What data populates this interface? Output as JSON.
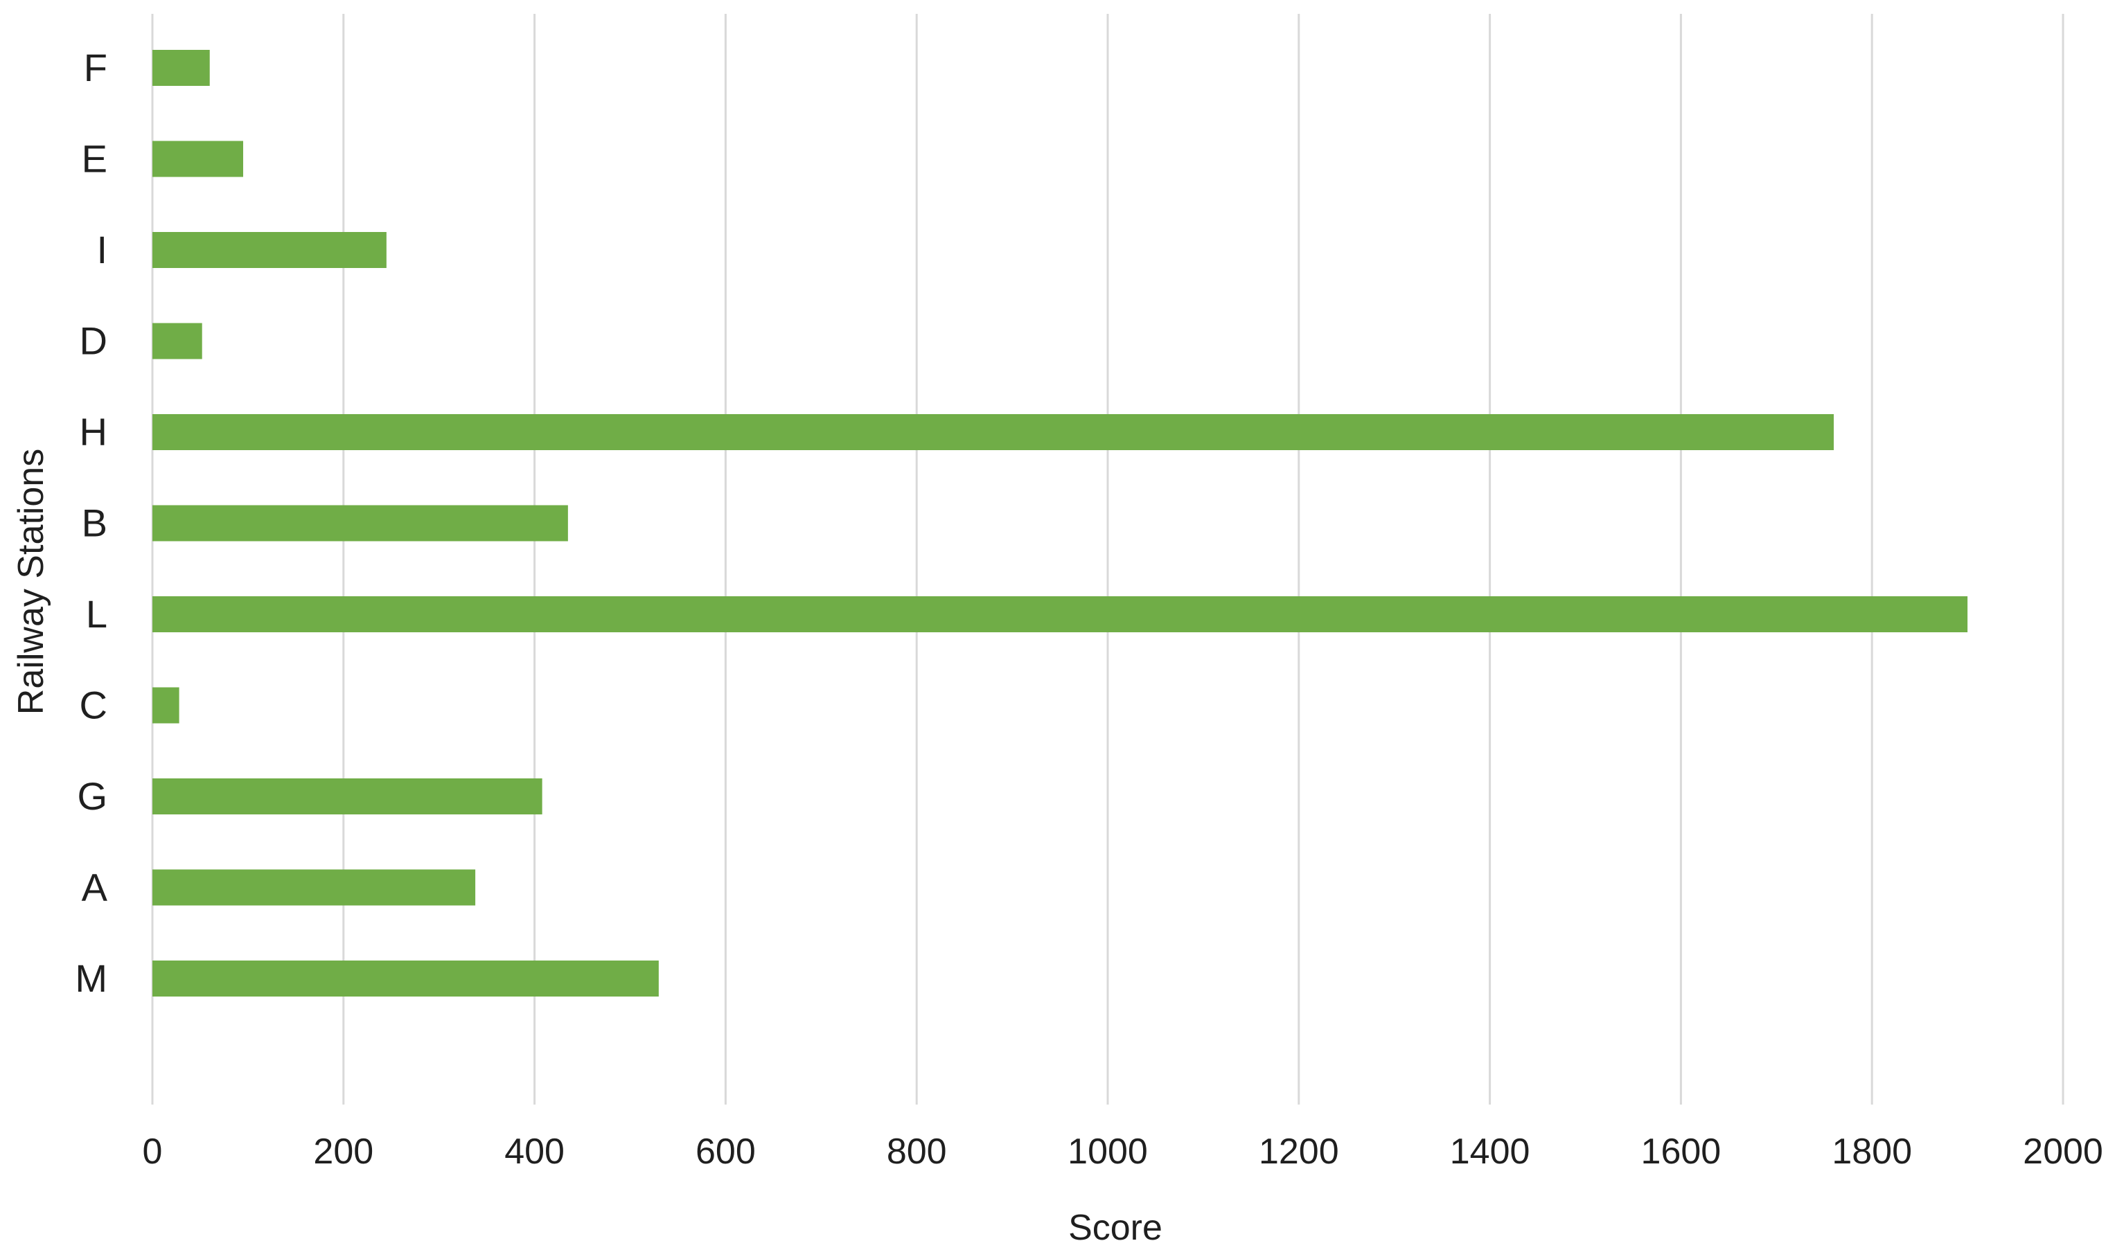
{
  "chart_data": {
    "type": "bar",
    "orientation": "horizontal",
    "categories": [
      "F",
      "E",
      "I",
      "D",
      "H",
      "B",
      "L",
      "C",
      "G",
      "A",
      "M"
    ],
    "values": [
      60,
      95,
      245,
      52,
      1760,
      435,
      1900,
      28,
      408,
      338,
      530
    ],
    "xlabel": "Score",
    "ylabel": "Railway Stations",
    "xlim": [
      0,
      2000
    ],
    "xticks": [
      0,
      200,
      400,
      600,
      800,
      1000,
      1200,
      1400,
      1600,
      1800,
      2000
    ],
    "grid": true,
    "legend": "none",
    "colors": {
      "bar": "#70ad47",
      "grid": "#d9d9d9",
      "text": "#1f1f1f"
    }
  }
}
